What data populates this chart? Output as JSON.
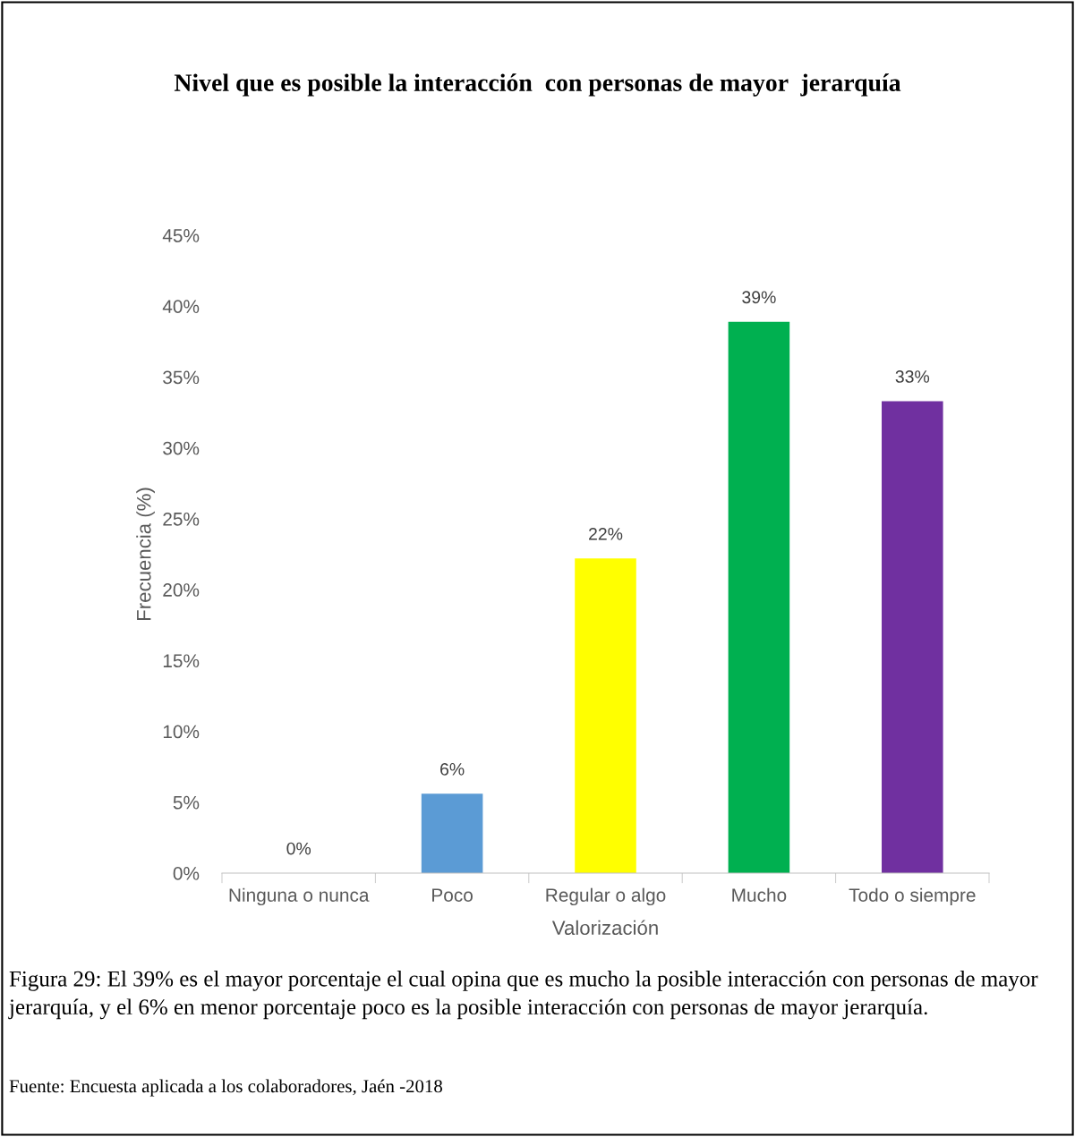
{
  "chart_data": {
    "type": "bar",
    "title": "Nivel que es posible la interacción  con personas de mayor  jerarquía",
    "xlabel": "Valorización",
    "ylabel": "Frecuencia (%)",
    "categories": [
      "Ninguna o nunca",
      "Poco",
      "Regular o algo",
      "Mucho",
      "Todo o siempre"
    ],
    "values": [
      0,
      5.6,
      22.2,
      38.9,
      33.3
    ],
    "colors": [
      "#4472c4",
      "#5b9bd5",
      "#ffff00",
      "#00b050",
      "#7030a0"
    ],
    "value_labels": [
      "0%",
      "6%",
      "22%",
      "39%",
      "33%"
    ],
    "ylim": [
      0,
      45
    ],
    "yticks": [
      {
        "value": 0,
        "label": "0%"
      },
      {
        "value": 5,
        "label": "5%"
      },
      {
        "value": 10,
        "label": "10%"
      },
      {
        "value": 15,
        "label": "15%"
      },
      {
        "value": 20,
        "label": "20%"
      },
      {
        "value": 25,
        "label": "25%"
      },
      {
        "value": 30,
        "label": "30%"
      },
      {
        "value": 35,
        "label": "35%"
      },
      {
        "value": 40,
        "label": "40%"
      },
      {
        "value": 45,
        "label": "45%"
      }
    ],
    "grid": false,
    "annotations": [
      "Figura 29: El 39% es el mayor porcentaje el cual opina que es mucho la posible interacción con personas de mayor jerarquía, y el 6% en menor porcentaje poco es la posible interacción con personas de mayor jerarquía.",
      "Fuente: Encuesta aplicada a los colaboradores, Jaén -2018"
    ]
  }
}
